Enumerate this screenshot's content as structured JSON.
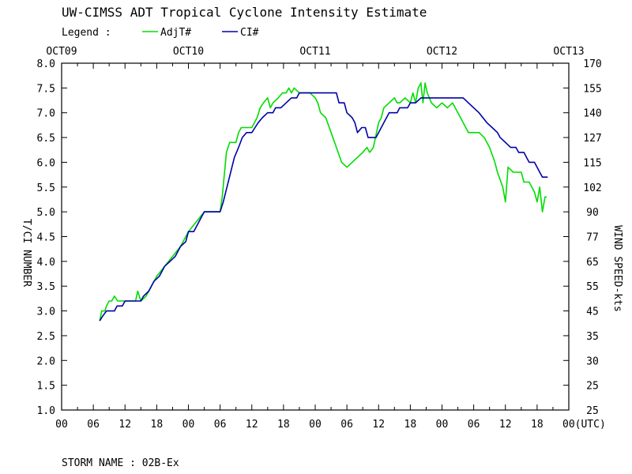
{
  "title": "UW-CIMSS ADT Tropical Cyclone Intensity Estimate",
  "legend": {
    "label": "Legend :",
    "items": [
      {
        "name": "AdjT#",
        "color": "#00dd00"
      },
      {
        "name": "CI#",
        "color": "#0000aa"
      }
    ]
  },
  "storm_name": "STORM NAME : 02B-Ex",
  "chart_data": {
    "type": "line",
    "title": "UW-CIMSS ADT Tropical Cyclone Intensity Estimate",
    "ylabel": "T/CI NUMBER",
    "y2label": "WIND SPEED-kts",
    "xlabel": "(UTC)",
    "ylim": [
      1.0,
      8.0
    ],
    "xlim": [
      0,
      96
    ],
    "top_date_ticks": [
      {
        "x": 0,
        "label": "OCT09"
      },
      {
        "x": 24,
        "label": "OCT10"
      },
      {
        "x": 48,
        "label": "OCT11"
      },
      {
        "x": 72,
        "label": "OCT12"
      },
      {
        "x": 96,
        "label": "OCT13"
      }
    ],
    "x_tick_labels": [
      {
        "x": 0,
        "label": "00"
      },
      {
        "x": 6,
        "label": "06"
      },
      {
        "x": 12,
        "label": "12"
      },
      {
        "x": 18,
        "label": "18"
      },
      {
        "x": 24,
        "label": "00"
      },
      {
        "x": 30,
        "label": "06"
      },
      {
        "x": 36,
        "label": "12"
      },
      {
        "x": 42,
        "label": "18"
      },
      {
        "x": 48,
        "label": "00"
      },
      {
        "x": 54,
        "label": "06"
      },
      {
        "x": 60,
        "label": "12"
      },
      {
        "x": 66,
        "label": "18"
      },
      {
        "x": 72,
        "label": "00"
      },
      {
        "x": 78,
        "label": "06"
      },
      {
        "x": 84,
        "label": "12"
      },
      {
        "x": 90,
        "label": "18"
      },
      {
        "x": 96,
        "label": "00(UTC)"
      }
    ],
    "y_ticks": [
      {
        "v": 8.0,
        "label": "8.0",
        "wind": "170"
      },
      {
        "v": 7.5,
        "label": "7.5",
        "wind": "155"
      },
      {
        "v": 7.0,
        "label": "7.0",
        "wind": "140"
      },
      {
        "v": 6.5,
        "label": "6.5",
        "wind": "127"
      },
      {
        "v": 6.0,
        "label": "6.0",
        "wind": "115"
      },
      {
        "v": 5.5,
        "label": "5.5",
        "wind": "102"
      },
      {
        "v": 5.0,
        "label": "5.0",
        "wind": "90"
      },
      {
        "v": 4.5,
        "label": "4.5",
        "wind": "77"
      },
      {
        "v": 4.0,
        "label": "4.0",
        "wind": "65"
      },
      {
        "v": 3.5,
        "label": "3.5",
        "wind": "55"
      },
      {
        "v": 3.0,
        "label": "3.0",
        "wind": "45"
      },
      {
        "v": 2.5,
        "label": "2.5",
        "wind": "35"
      },
      {
        "v": 2.0,
        "label": "2.0",
        "wind": "30"
      },
      {
        "v": 1.5,
        "label": "1.5",
        "wind": "25"
      },
      {
        "v": 1.0,
        "label": "1.0",
        "wind": "25"
      }
    ],
    "series": [
      {
        "name": "AdjT#",
        "color": "#00dd00",
        "points": [
          [
            7.2,
            2.8
          ],
          [
            7.6,
            3.0
          ],
          [
            8.2,
            3.0
          ],
          [
            8.5,
            3.1
          ],
          [
            9.0,
            3.2
          ],
          [
            9.5,
            3.2
          ],
          [
            10.0,
            3.3
          ],
          [
            10.6,
            3.2
          ],
          [
            11.2,
            3.2
          ],
          [
            12.0,
            3.2
          ],
          [
            13.0,
            3.2
          ],
          [
            14.0,
            3.2
          ],
          [
            14.4,
            3.4
          ],
          [
            15.0,
            3.2
          ],
          [
            16.0,
            3.3
          ],
          [
            17.0,
            3.5
          ],
          [
            18.0,
            3.7
          ],
          [
            19.5,
            3.9
          ],
          [
            21.0,
            4.1
          ],
          [
            22.5,
            4.3
          ],
          [
            24.0,
            4.6
          ],
          [
            25.5,
            4.8
          ],
          [
            27.0,
            5.0
          ],
          [
            28.5,
            5.0
          ],
          [
            30.0,
            5.0
          ],
          [
            30.4,
            5.3
          ],
          [
            31.2,
            6.2
          ],
          [
            31.8,
            6.4
          ],
          [
            33.0,
            6.4
          ],
          [
            33.5,
            6.6
          ],
          [
            34.0,
            6.7
          ],
          [
            36.0,
            6.7
          ],
          [
            36.5,
            6.8
          ],
          [
            37.0,
            6.9
          ],
          [
            37.6,
            7.1
          ],
          [
            38.2,
            7.2
          ],
          [
            39.0,
            7.3
          ],
          [
            39.5,
            7.1
          ],
          [
            40.0,
            7.2
          ],
          [
            41.0,
            7.3
          ],
          [
            41.8,
            7.4
          ],
          [
            42.5,
            7.4
          ],
          [
            43.0,
            7.5
          ],
          [
            43.5,
            7.4
          ],
          [
            44.0,
            7.5
          ],
          [
            45.0,
            7.4
          ],
          [
            47.0,
            7.4
          ],
          [
            48.0,
            7.3
          ],
          [
            48.5,
            7.2
          ],
          [
            49.0,
            7.0
          ],
          [
            50.0,
            6.9
          ],
          [
            51.0,
            6.6
          ],
          [
            52.0,
            6.3
          ],
          [
            53.0,
            6.0
          ],
          [
            54.0,
            5.9
          ],
          [
            55.0,
            6.0
          ],
          [
            56.0,
            6.1
          ],
          [
            57.0,
            6.2
          ],
          [
            57.8,
            6.3
          ],
          [
            58.3,
            6.2
          ],
          [
            59.0,
            6.3
          ],
          [
            60.0,
            6.8
          ],
          [
            60.5,
            6.9
          ],
          [
            61.0,
            7.1
          ],
          [
            62.0,
            7.2
          ],
          [
            63.0,
            7.3
          ],
          [
            63.5,
            7.2
          ],
          [
            64.0,
            7.2
          ],
          [
            65.0,
            7.3
          ],
          [
            66.0,
            7.2
          ],
          [
            66.5,
            7.4
          ],
          [
            67.0,
            7.2
          ],
          [
            67.5,
            7.5
          ],
          [
            68.0,
            7.6
          ],
          [
            68.4,
            7.2
          ],
          [
            68.8,
            7.6
          ],
          [
            69.2,
            7.4
          ],
          [
            69.6,
            7.3
          ],
          [
            70.0,
            7.2
          ],
          [
            71.0,
            7.1
          ],
          [
            72.0,
            7.2
          ],
          [
            73.0,
            7.1
          ],
          [
            74.0,
            7.2
          ],
          [
            75.0,
            7.0
          ],
          [
            76.0,
            6.8
          ],
          [
            77.0,
            6.6
          ],
          [
            79.0,
            6.6
          ],
          [
            80.0,
            6.5
          ],
          [
            81.0,
            6.3
          ],
          [
            82.0,
            6.0
          ],
          [
            82.5,
            5.8
          ],
          [
            83.5,
            5.5
          ],
          [
            84.0,
            5.2
          ],
          [
            84.5,
            5.9
          ],
          [
            85.5,
            5.8
          ],
          [
            86.0,
            5.8
          ],
          [
            87.0,
            5.8
          ],
          [
            87.5,
            5.6
          ],
          [
            88.5,
            5.6
          ],
          [
            89.0,
            5.5
          ],
          [
            89.5,
            5.4
          ],
          [
            90.0,
            5.2
          ],
          [
            90.5,
            5.5
          ],
          [
            91.0,
            5.0
          ],
          [
            91.5,
            5.3
          ],
          [
            91.8,
            5.3
          ]
        ]
      },
      {
        "name": "CI#",
        "color": "#0000aa",
        "points": [
          [
            7.2,
            2.8
          ],
          [
            7.8,
            2.9
          ],
          [
            8.5,
            3.0
          ],
          [
            10.0,
            3.0
          ],
          [
            10.5,
            3.1
          ],
          [
            11.5,
            3.1
          ],
          [
            12.0,
            3.2
          ],
          [
            14.0,
            3.2
          ],
          [
            15.0,
            3.2
          ],
          [
            15.5,
            3.3
          ],
          [
            16.5,
            3.4
          ],
          [
            17.5,
            3.6
          ],
          [
            18.5,
            3.7
          ],
          [
            19.5,
            3.9
          ],
          [
            20.5,
            4.0
          ],
          [
            21.5,
            4.1
          ],
          [
            22.5,
            4.3
          ],
          [
            23.5,
            4.4
          ],
          [
            24.0,
            4.6
          ],
          [
            25.0,
            4.6
          ],
          [
            25.5,
            4.7
          ],
          [
            26.5,
            4.9
          ],
          [
            27.0,
            5.0
          ],
          [
            28.0,
            5.0
          ],
          [
            30.0,
            5.0
          ],
          [
            30.6,
            5.2
          ],
          [
            31.3,
            5.5
          ],
          [
            32.0,
            5.8
          ],
          [
            32.7,
            6.1
          ],
          [
            33.5,
            6.3
          ],
          [
            34.2,
            6.5
          ],
          [
            35.0,
            6.6
          ],
          [
            36.0,
            6.6
          ],
          [
            36.6,
            6.7
          ],
          [
            37.2,
            6.8
          ],
          [
            38.0,
            6.9
          ],
          [
            39.0,
            7.0
          ],
          [
            40.0,
            7.0
          ],
          [
            40.5,
            7.1
          ],
          [
            41.5,
            7.1
          ],
          [
            42.5,
            7.2
          ],
          [
            43.5,
            7.3
          ],
          [
            44.5,
            7.3
          ],
          [
            45.0,
            7.4
          ],
          [
            52.0,
            7.4
          ],
          [
            52.5,
            7.2
          ],
          [
            53.5,
            7.2
          ],
          [
            54.0,
            7.0
          ],
          [
            55.0,
            6.9
          ],
          [
            55.5,
            6.8
          ],
          [
            56.0,
            6.6
          ],
          [
            56.8,
            6.7
          ],
          [
            57.5,
            6.7
          ],
          [
            58.0,
            6.5
          ],
          [
            59.5,
            6.5
          ],
          [
            60.0,
            6.6
          ],
          [
            61.0,
            6.8
          ],
          [
            62.0,
            7.0
          ],
          [
            63.5,
            7.0
          ],
          [
            64.0,
            7.1
          ],
          [
            65.5,
            7.1
          ],
          [
            66.0,
            7.2
          ],
          [
            67.0,
            7.2
          ],
          [
            68.0,
            7.3
          ],
          [
            70.0,
            7.3
          ],
          [
            75.0,
            7.3
          ],
          [
            76.0,
            7.3
          ],
          [
            77.0,
            7.2
          ],
          [
            78.0,
            7.1
          ],
          [
            79.0,
            7.0
          ],
          [
            80.5,
            6.8
          ],
          [
            81.5,
            6.7
          ],
          [
            82.5,
            6.6
          ],
          [
            83.0,
            6.5
          ],
          [
            84.0,
            6.4
          ],
          [
            85.0,
            6.3
          ],
          [
            86.0,
            6.3
          ],
          [
            86.5,
            6.2
          ],
          [
            87.5,
            6.2
          ],
          [
            88.0,
            6.1
          ],
          [
            88.5,
            6.0
          ],
          [
            89.5,
            6.0
          ],
          [
            90.0,
            5.9
          ],
          [
            90.5,
            5.8
          ],
          [
            91.0,
            5.7
          ],
          [
            92.0,
            5.7
          ]
        ]
      }
    ]
  }
}
